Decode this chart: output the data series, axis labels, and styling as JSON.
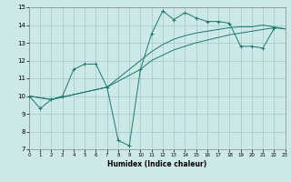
{
  "xlabel": "Humidex (Indice chaleur)",
  "xlim": [
    0,
    23
  ],
  "ylim": [
    7,
    15
  ],
  "xticks": [
    0,
    1,
    2,
    3,
    4,
    5,
    6,
    7,
    8,
    9,
    10,
    11,
    12,
    13,
    14,
    15,
    16,
    17,
    18,
    19,
    20,
    21,
    22,
    23
  ],
  "yticks": [
    7,
    8,
    9,
    10,
    11,
    12,
    13,
    14,
    15
  ],
  "background_color": "#cde8e8",
  "grid_color": "#a0c8c8",
  "line_color": "#1a7a6a",
  "series1_x": [
    0,
    1,
    2,
    3,
    4,
    5,
    6,
    7,
    8,
    9,
    10,
    11,
    12,
    13,
    14,
    15,
    16,
    17,
    18,
    19,
    20,
    21,
    22
  ],
  "series1_y": [
    10.0,
    9.3,
    9.8,
    10.0,
    11.5,
    11.8,
    11.8,
    10.5,
    7.5,
    7.2,
    11.5,
    13.5,
    14.8,
    14.3,
    14.7,
    14.4,
    14.2,
    14.2,
    14.1,
    12.8,
    12.8,
    12.7,
    13.8
  ],
  "series2_x": [
    0,
    2,
    7,
    10,
    11,
    12,
    13,
    14,
    15,
    16,
    17,
    18,
    19,
    20,
    21,
    22,
    23
  ],
  "series2_y": [
    10.0,
    9.8,
    10.5,
    11.5,
    12.0,
    12.3,
    12.6,
    12.8,
    13.0,
    13.15,
    13.3,
    13.45,
    13.55,
    13.65,
    13.75,
    13.85,
    13.78
  ],
  "series3_x": [
    0,
    2,
    7,
    10,
    11,
    12,
    13,
    14,
    15,
    16,
    17,
    18,
    19,
    20,
    21,
    22,
    23
  ],
  "series3_y": [
    10.0,
    9.8,
    10.5,
    12.0,
    12.5,
    12.9,
    13.2,
    13.4,
    13.55,
    13.65,
    13.75,
    13.85,
    13.9,
    13.9,
    14.0,
    13.9,
    13.78
  ]
}
